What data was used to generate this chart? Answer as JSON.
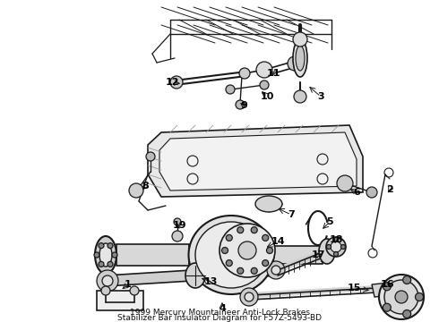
{
  "title_line1": "1999 Mercury Mountaineer Anti-Lock Brakes",
  "title_line2": "Stabilizer Bar Insulator Diagram for F57Z-5493-BD",
  "background_color": "#ffffff",
  "line_color": "#1a1a1a",
  "label_color": "#000000",
  "fig_width": 4.9,
  "fig_height": 3.6,
  "dpi": 100,
  "label_fontsize": 8,
  "title_fontsize": 6.5
}
